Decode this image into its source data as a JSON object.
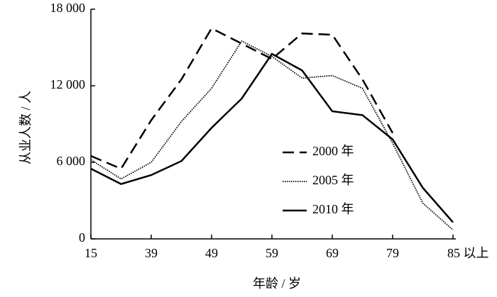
{
  "chart_data": {
    "type": "line",
    "x_label": "年龄 / 岁",
    "y_label": "从业人数 / 人",
    "categories": [
      "15",
      null,
      "39",
      null,
      "49",
      null,
      "59",
      null,
      "69",
      null,
      "79",
      null,
      "85 以上"
    ],
    "series": [
      {
        "name": "2000 年",
        "color": "#000000",
        "style": "dashed",
        "values": [
          6500,
          5500,
          9300,
          12500,
          16500,
          15300,
          14100,
          16100,
          16000,
          12500,
          8300,
          null,
          null
        ]
      },
      {
        "name": "2005 年",
        "color": "#000000",
        "style": "dotted",
        "values": [
          6200,
          4700,
          6000,
          9200,
          11800,
          15500,
          14300,
          12600,
          12800,
          11800,
          7500,
          2800,
          700
        ]
      },
      {
        "name": "2010 年",
        "color": "#000000",
        "style": "solid",
        "values": [
          5500,
          4300,
          5000,
          6100,
          8700,
          11000,
          14500,
          13200,
          10000,
          9700,
          7800,
          4000,
          1300
        ]
      }
    ],
    "ylim": [
      0,
      18000
    ],
    "yticks": [
      {
        "value": 0,
        "label": "0"
      },
      {
        "value": 6000,
        "label": "6 000"
      },
      {
        "value": 12000,
        "label": "12 000"
      },
      {
        "value": 18000,
        "label": "18 000"
      }
    ],
    "grid": false
  }
}
